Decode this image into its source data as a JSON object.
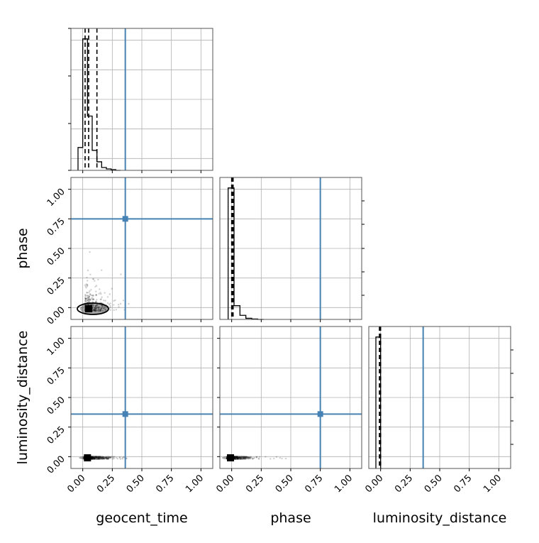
{
  "chart_data": {
    "type": "corner",
    "parameters": [
      "geocent_time",
      "phase",
      "luminosity_distance"
    ],
    "axis_range": [
      -0.1,
      1.1
    ],
    "ticks": [
      0.0,
      0.25,
      0.5,
      0.75,
      1.0
    ],
    "tick_labels": [
      "0.00",
      "0.25",
      "0.50",
      "0.75",
      "1.00"
    ],
    "grid": true,
    "truth": {
      "geocent_time": 0.36,
      "phase": 0.75,
      "luminosity_distance": 0.36
    },
    "truth_color": "#4682b4",
    "histogram_color": "#000000",
    "histograms": [
      {
        "parameter": "geocent_time",
        "bin_edges": [
          -0.04,
          0.0,
          0.04,
          0.08,
          0.12,
          0.16,
          0.2,
          0.24,
          0.28,
          0.32
        ],
        "heights": [
          0.16,
          0.92,
          0.38,
          0.14,
          0.06,
          0.02,
          0.01,
          0.005,
          0.0
        ],
        "quantiles": [
          0.02,
          0.05,
          0.12
        ]
      },
      {
        "parameter": "phase",
        "bin_edges": [
          -0.03,
          0.02,
          0.07,
          0.12,
          0.17,
          0.22,
          0.27
        ],
        "heights": [
          0.96,
          0.1,
          0.03,
          0.008,
          0.003,
          0.0
        ],
        "quantiles": [
          0.0,
          0.005,
          0.012
        ]
      },
      {
        "parameter": "luminosity_distance",
        "bin_edges": [
          -0.04,
          0.0,
          0.01
        ],
        "heights": [
          0.98,
          0.0
        ],
        "quantiles": [
          -0.01,
          -0.005,
          0.0
        ]
      }
    ],
    "panels_2d": [
      {
        "x": "geocent_time",
        "y": "phase",
        "spread_x": 0.7,
        "spread_y": 0.7,
        "mode": [
          0.05,
          -0.01
        ]
      },
      {
        "x": "geocent_time",
        "y": "luminosity_distance",
        "spread_x": 0.7,
        "spread_y": 0.02,
        "mode": [
          0.04,
          -0.01
        ]
      },
      {
        "x": "phase",
        "y": "luminosity_distance",
        "spread_x": 0.7,
        "spread_y": 0.02,
        "mode": [
          -0.01,
          -0.01
        ]
      }
    ]
  }
}
